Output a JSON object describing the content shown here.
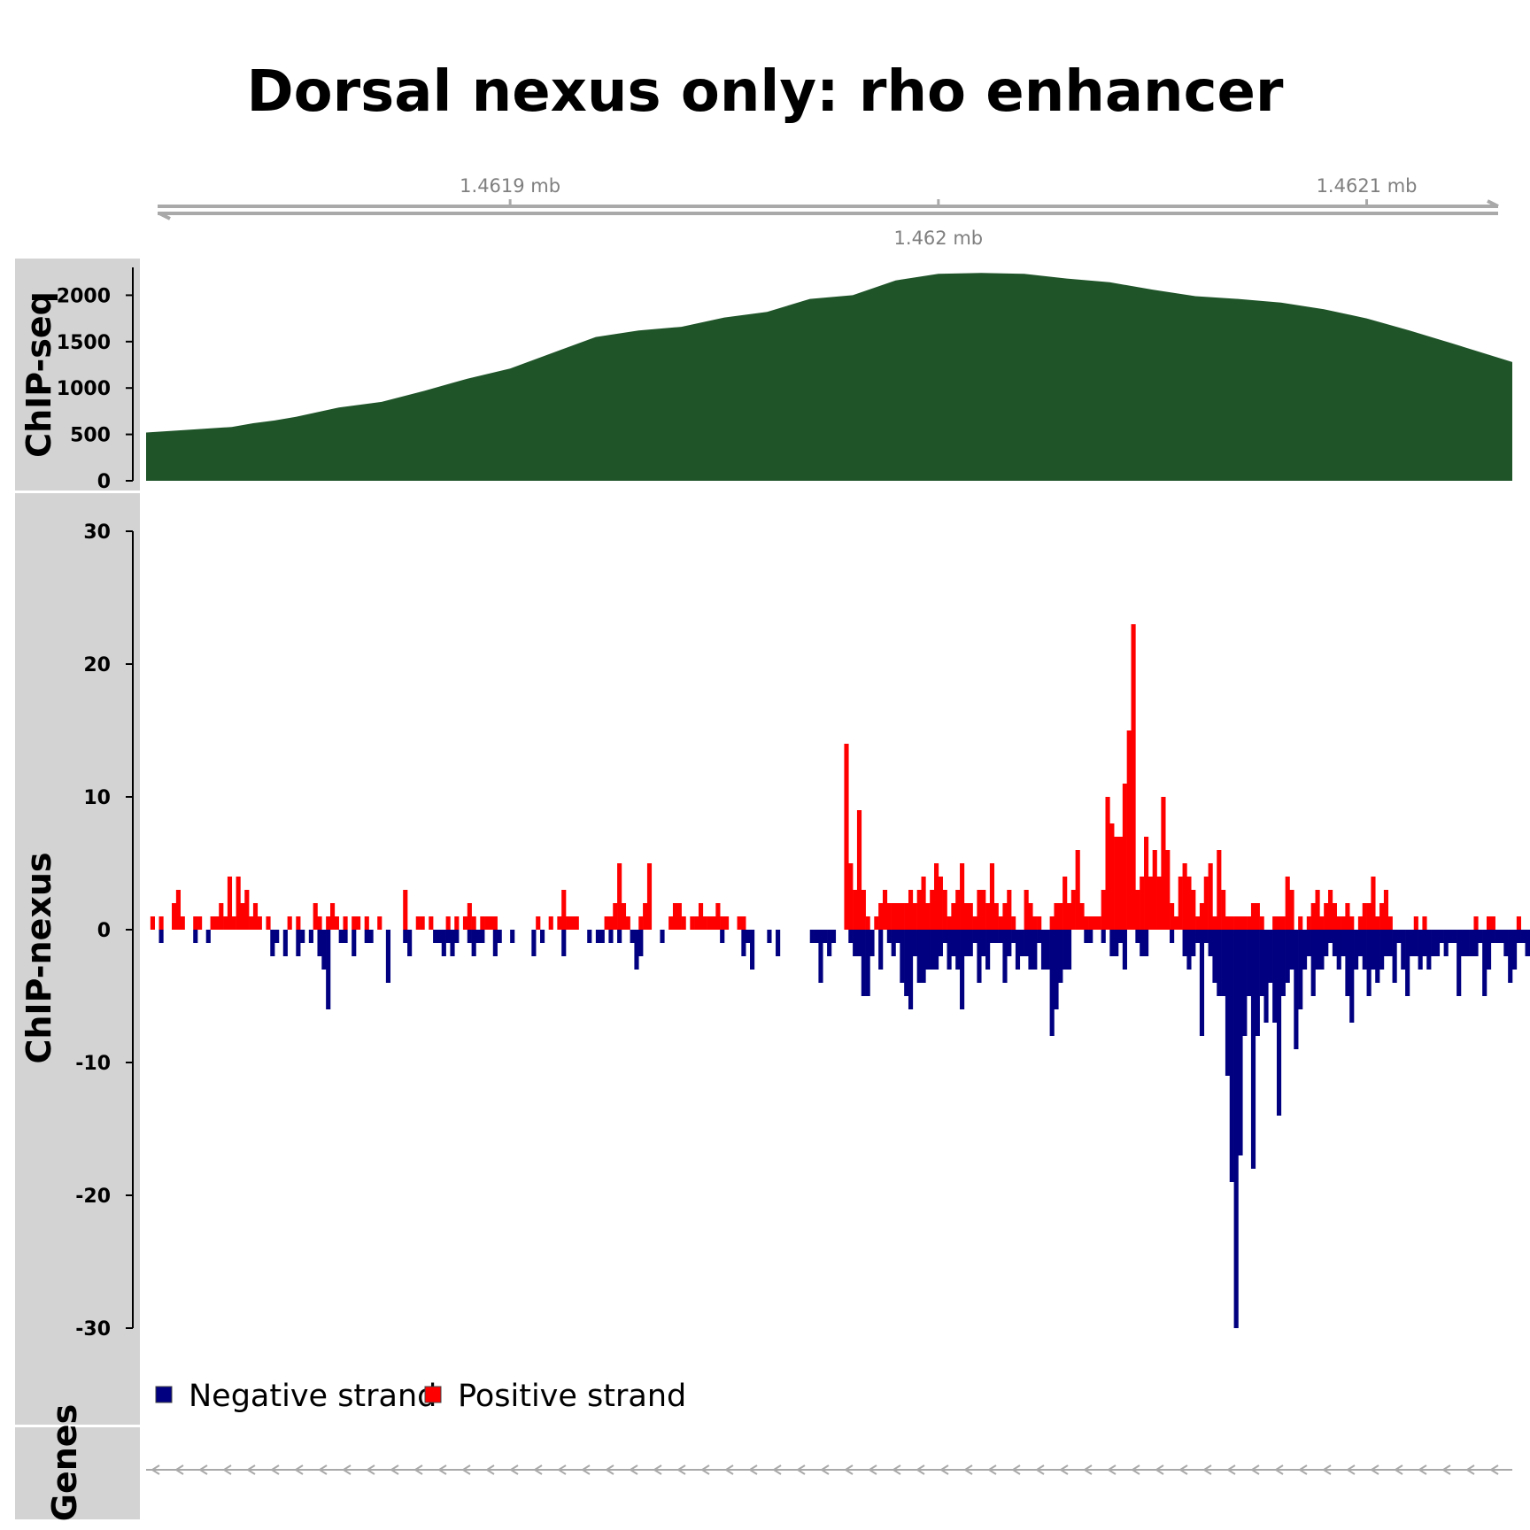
{
  "title": "Dorsal nexus only: rho enhancer",
  "colors": {
    "chipseq_fill": "#1f5429",
    "positive": "#ff0000",
    "negative": "#000080",
    "track_bg": "#d3d3d3",
    "coord_axis": "#a9a9a9"
  },
  "genome_axis": {
    "ticks": [
      {
        "pos": 1.4619,
        "label": "1.4619 mb",
        "above": true
      },
      {
        "pos": 1.462,
        "label": "1.462 mb",
        "above": false
      },
      {
        "pos": 1.4621,
        "label": "1.4621 mb",
        "above": true
      }
    ]
  },
  "genes_track": {
    "label": "Genes"
  },
  "legend": [
    {
      "label": "Negative strand",
      "color": "#000080"
    },
    {
      "label": "Positive strand",
      "color": "#ff0000"
    }
  ],
  "chart_data": [
    {
      "type": "area",
      "track": "ChIP-seq",
      "ylabel": "ChIP-seq",
      "ylim": [
        0,
        2300
      ],
      "yticks": [
        0,
        500,
        1000,
        1500,
        2000
      ],
      "xlim": [
        1.461815,
        1.462134
      ],
      "x_units": "mb",
      "series": [
        {
          "x": [
            1.461815,
            1.461825,
            1.461835,
            1.46184,
            1.461845,
            1.46185,
            1.46186,
            1.46187,
            1.46188,
            1.46189,
            1.4619,
            1.46191,
            1.46192,
            1.46193,
            1.46194,
            1.46195,
            1.46196,
            1.46197,
            1.46198,
            1.46199,
            1.462,
            1.46201,
            1.46202,
            1.46203,
            1.46204,
            1.46205,
            1.46206,
            1.46207,
            1.46208,
            1.46209,
            1.4621,
            1.46211,
            1.46212,
            1.462134
          ],
          "values": [
            520,
            550,
            580,
            620,
            650,
            690,
            790,
            850,
            970,
            1100,
            1210,
            1380,
            1550,
            1620,
            1660,
            1760,
            1820,
            1960,
            2000,
            2160,
            2230,
            2240,
            2230,
            2180,
            2140,
            2060,
            1990,
            1960,
            1920,
            1850,
            1750,
            1620,
            1480,
            1280
          ]
        }
      ]
    },
    {
      "type": "bar",
      "track": "ChIP-nexus",
      "ylabel": "ChIP-nexus",
      "ylim": [
        -30,
        30
      ],
      "yticks": [
        -30,
        -20,
        -10,
        0,
        10,
        20,
        30
      ],
      "xlim": [
        1.461815,
        1.462134
      ],
      "bin_start": 1.461816,
      "bin_width": 1e-06,
      "series": [
        {
          "name": "Positive strand",
          "values": [
            1,
            0,
            1,
            0,
            0,
            2,
            3,
            1,
            0,
            0,
            1,
            1,
            0,
            0,
            1,
            1,
            2,
            1,
            4,
            1,
            4,
            2,
            3,
            1,
            2,
            1,
            0,
            1,
            0,
            0,
            0,
            0,
            1,
            0,
            1,
            0,
            0,
            0,
            2,
            1,
            0,
            1,
            2,
            1,
            0,
            1,
            0,
            1,
            1,
            0,
            1,
            0,
            0,
            1,
            0,
            0,
            0,
            0,
            0,
            3,
            0,
            0,
            1,
            1,
            0,
            1,
            0,
            0,
            0,
            1,
            0,
            1,
            0,
            1,
            2,
            1,
            0,
            1,
            1,
            1,
            1,
            0,
            0,
            0,
            0,
            0,
            0,
            0,
            0,
            0,
            1,
            0,
            0,
            1,
            0,
            1,
            3,
            1,
            1,
            1,
            0,
            0,
            0,
            0,
            0,
            0,
            1,
            1,
            2,
            5,
            2,
            1,
            0,
            0,
            1,
            2,
            5,
            0,
            0,
            0,
            0,
            1,
            2,
            2,
            1,
            0,
            1,
            1,
            2,
            1,
            1,
            1,
            2,
            1,
            1,
            0,
            0,
            1,
            1,
            0,
            0,
            0,
            0,
            0,
            0,
            0,
            0,
            0,
            0,
            0,
            0,
            0,
            0,
            0,
            0,
            0,
            0,
            0,
            0,
            0,
            0,
            0,
            14,
            5,
            3,
            9,
            3,
            1,
            0,
            1,
            2,
            3,
            2,
            2,
            2,
            2,
            2,
            3,
            2,
            3,
            4,
            2,
            3,
            5,
            4,
            3,
            1,
            2,
            3,
            5,
            2,
            2,
            1,
            3,
            3,
            2,
            5,
            2,
            1,
            2,
            3,
            1,
            0,
            0,
            3,
            2,
            1,
            1,
            0,
            0,
            1,
            2,
            2,
            4,
            2,
            3,
            6,
            2,
            1,
            1,
            1,
            1,
            3,
            10,
            8,
            7,
            7,
            11,
            15,
            23,
            3,
            4,
            7,
            4,
            6,
            4,
            10,
            6,
            2,
            1,
            4,
            5,
            4,
            3,
            1,
            2,
            4,
            5,
            1,
            6,
            3,
            1,
            1,
            1,
            1,
            1,
            1,
            2,
            2,
            1,
            0,
            0,
            1,
            1,
            1,
            4,
            3,
            0,
            1,
            0,
            1,
            2,
            3,
            1,
            2,
            3,
            2,
            1,
            1,
            2,
            1,
            0,
            1,
            2,
            2,
            4,
            1,
            2,
            3,
            1,
            0,
            0,
            0,
            0,
            0,
            1,
            0,
            1,
            0,
            0,
            0,
            0,
            0,
            0,
            0,
            0,
            0,
            0,
            0,
            1,
            0,
            0,
            1,
            1,
            0,
            0,
            0,
            0,
            0,
            1,
            0,
            0
          ]
        },
        {
          "name": "Negative strand",
          "values": [
            0,
            0,
            -1,
            0,
            0,
            0,
            0,
            0,
            0,
            0,
            -1,
            0,
            0,
            -1,
            0,
            0,
            0,
            0,
            0,
            0,
            0,
            0,
            0,
            0,
            0,
            0,
            0,
            0,
            -2,
            -1,
            0,
            -2,
            0,
            0,
            -2,
            -1,
            0,
            -1,
            0,
            -2,
            -3,
            -6,
            0,
            0,
            -1,
            -1,
            0,
            -2,
            0,
            0,
            -1,
            -1,
            0,
            0,
            0,
            -4,
            0,
            0,
            0,
            -1,
            -2,
            0,
            0,
            0,
            0,
            0,
            -1,
            -1,
            -2,
            -1,
            -2,
            -1,
            0,
            0,
            -1,
            -2,
            -1,
            -1,
            0,
            0,
            -2,
            -1,
            0,
            0,
            -1,
            0,
            0,
            0,
            0,
            -2,
            0,
            -1,
            0,
            0,
            0,
            0,
            -2,
            0,
            0,
            0,
            0,
            0,
            -1,
            0,
            -1,
            -1,
            0,
            -1,
            0,
            -1,
            0,
            0,
            -1,
            -3,
            -2,
            0,
            0,
            0,
            0,
            -1,
            0,
            0,
            0,
            0,
            0,
            0,
            0,
            0,
            0,
            0,
            0,
            0,
            0,
            -1,
            0,
            0,
            0,
            0,
            -2,
            -1,
            -3,
            0,
            0,
            0,
            -1,
            0,
            -2,
            0,
            0,
            0,
            0,
            0,
            0,
            0,
            -1,
            -1,
            -4,
            -1,
            -2,
            -1,
            0,
            0,
            0,
            -1,
            -2,
            -2,
            -5,
            -5,
            -2,
            0,
            -3,
            0,
            -1,
            -2,
            -1,
            -4,
            -5,
            -6,
            -2,
            -4,
            -4,
            -3,
            -3,
            -3,
            -2,
            -1,
            -3,
            -2,
            -3,
            -6,
            -2,
            -2,
            -1,
            -4,
            -2,
            -3,
            -1,
            -1,
            -1,
            -4,
            -2,
            -1,
            -3,
            -2,
            -2,
            -3,
            -3,
            -1,
            -3,
            -3,
            -8,
            -6,
            -4,
            -3,
            -3,
            0,
            0,
            0,
            -1,
            -1,
            0,
            0,
            -1,
            0,
            -2,
            -2,
            -1,
            -3,
            0,
            0,
            -1,
            -2,
            -2,
            0,
            0,
            0,
            0,
            0,
            -1,
            0,
            0,
            -2,
            -3,
            -2,
            -1,
            -8,
            -1,
            -2,
            -4,
            -5,
            -5,
            -11,
            -19,
            -30,
            -17,
            -8,
            -5,
            -18,
            -8,
            -5,
            -7,
            -4,
            -7,
            -14,
            -5,
            -4,
            -3,
            -9,
            -6,
            -3,
            -2,
            -5,
            -3,
            -3,
            -2,
            -1,
            -2,
            -3,
            -2,
            -5,
            -7,
            -3,
            -2,
            -3,
            -5,
            -3,
            -4,
            -3,
            -2,
            -2,
            -4,
            -1,
            -3,
            -5,
            -2,
            -2,
            -3,
            -2,
            -3,
            -2,
            -2,
            -1,
            -2,
            -1,
            -1,
            -5,
            -2,
            -2,
            -2,
            -2,
            -1,
            -5,
            -3,
            -1,
            -1,
            -1,
            -2,
            -4,
            -3,
            -1,
            -1,
            -2,
            -2,
            -1,
            -3,
            -2,
            -1,
            -1,
            -1,
            -1,
            -1
          ]
        }
      ]
    }
  ]
}
